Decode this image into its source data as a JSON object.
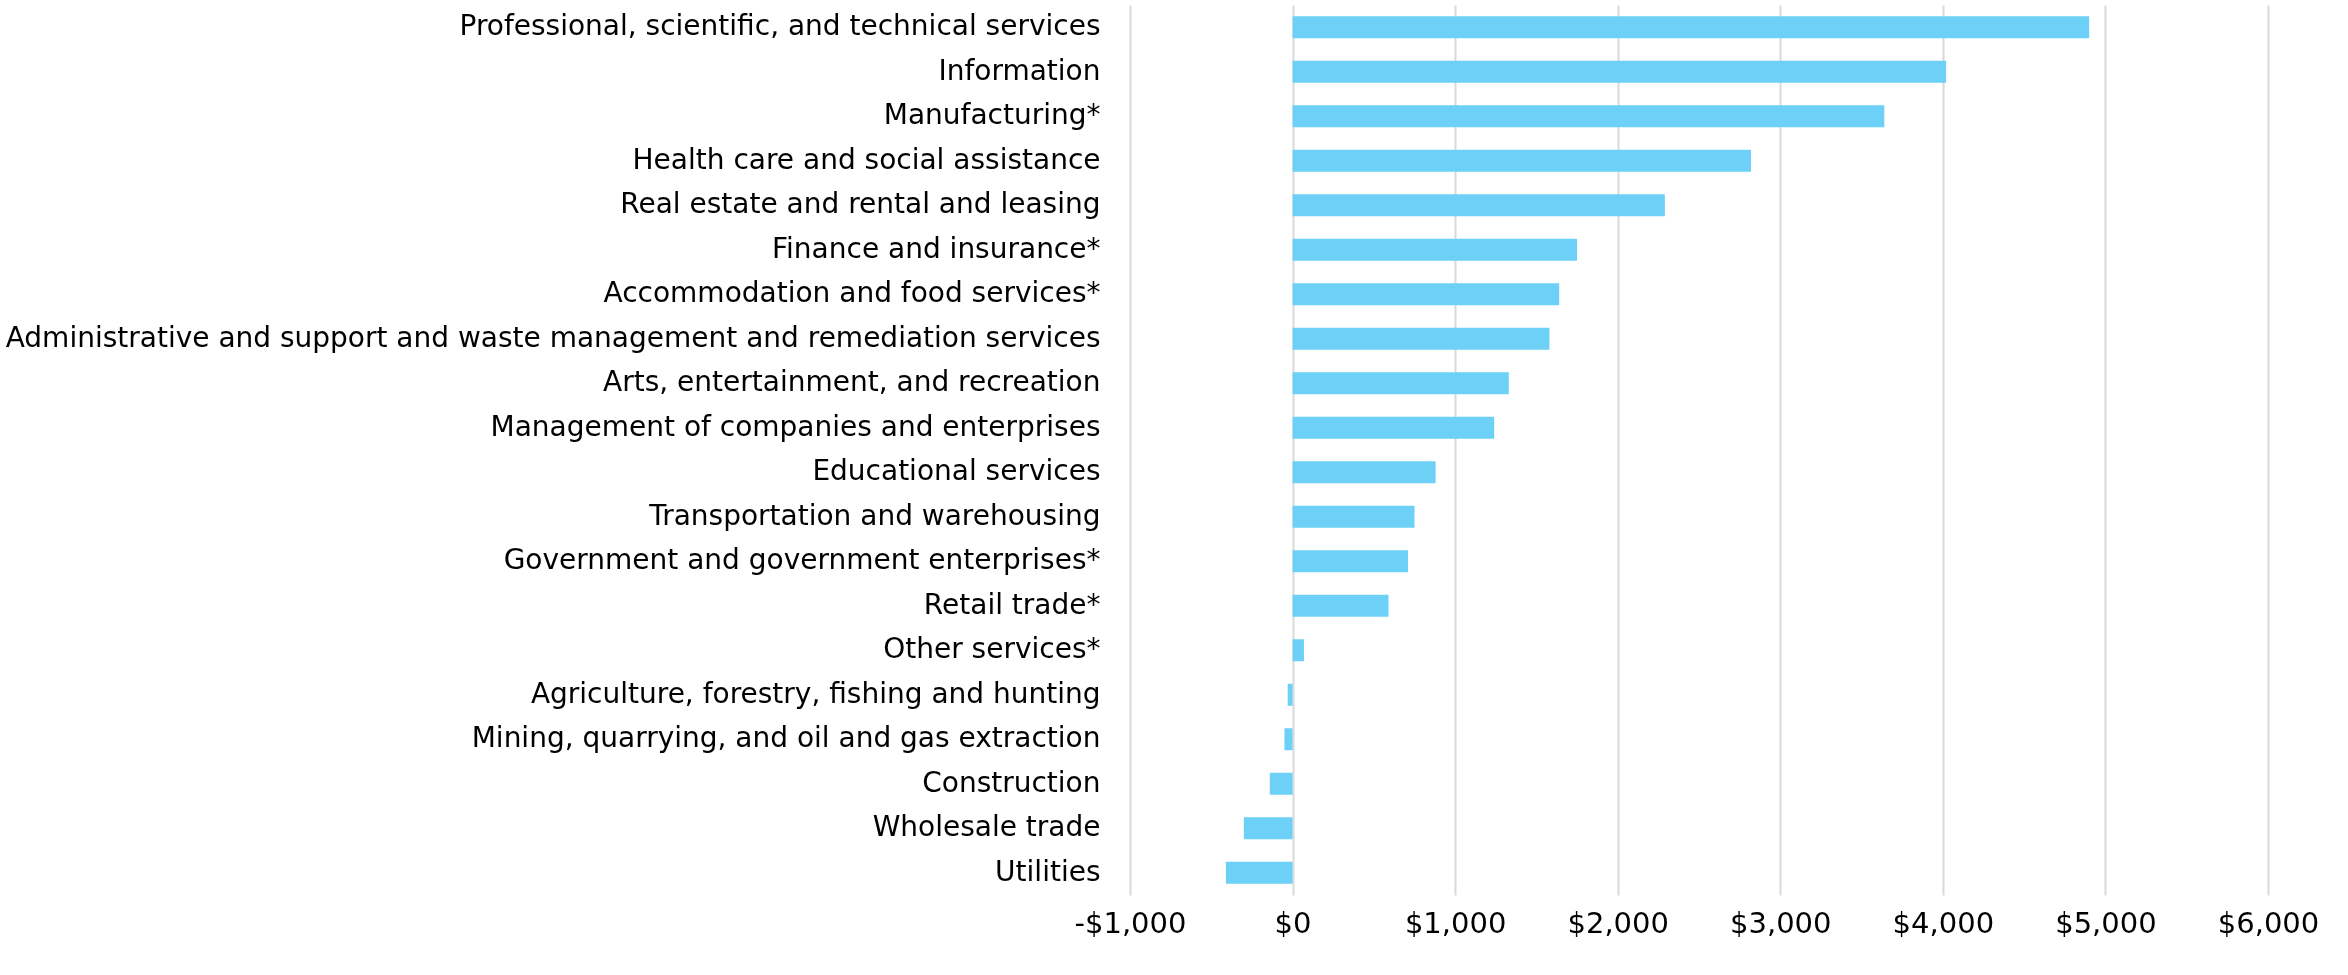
{
  "chart_data": {
    "type": "bar",
    "orientation": "horizontal",
    "categories": [
      "Professional, scientific, and technical services",
      "Information",
      "Manufacturing*",
      "Health care and social assistance",
      "Real estate and rental and leasing",
      "Finance and insurance*",
      "Accommodation and food services*",
      "Administrative and support and waste management and remediation services",
      "Arts, entertainment, and recreation",
      "Management of companies and enterprises",
      "Educational services",
      "Transportation and warehousing",
      "Government and government enterprises*",
      "Retail trade*",
      "Other services*",
      "Agriculture, forestry, fishing and hunting",
      "Mining, quarrying, and oil and gas extraction",
      "Construction",
      "Wholesale trade",
      "Utilities"
    ],
    "values": [
      4900,
      4020,
      3640,
      2820,
      2290,
      1750,
      1640,
      1580,
      1330,
      1240,
      880,
      750,
      710,
      590,
      70,
      -30,
      -50,
      -140,
      -300,
      -410
    ],
    "color": "#6dd0f7",
    "xlim": [
      -1000,
      6000
    ],
    "xticks": [
      {
        "value": -1000,
        "label": "-$1,000"
      },
      {
        "value": 0,
        "label": "$0"
      },
      {
        "value": 1000,
        "label": "$1,000"
      },
      {
        "value": 2000,
        "label": "$2,000"
      },
      {
        "value": 3000,
        "label": "$3,000"
      },
      {
        "value": 4000,
        "label": "$4,000"
      },
      {
        "value": 5000,
        "label": "$5,000"
      },
      {
        "value": 6000,
        "label": "$6,000"
      }
    ],
    "grid": "x"
  }
}
